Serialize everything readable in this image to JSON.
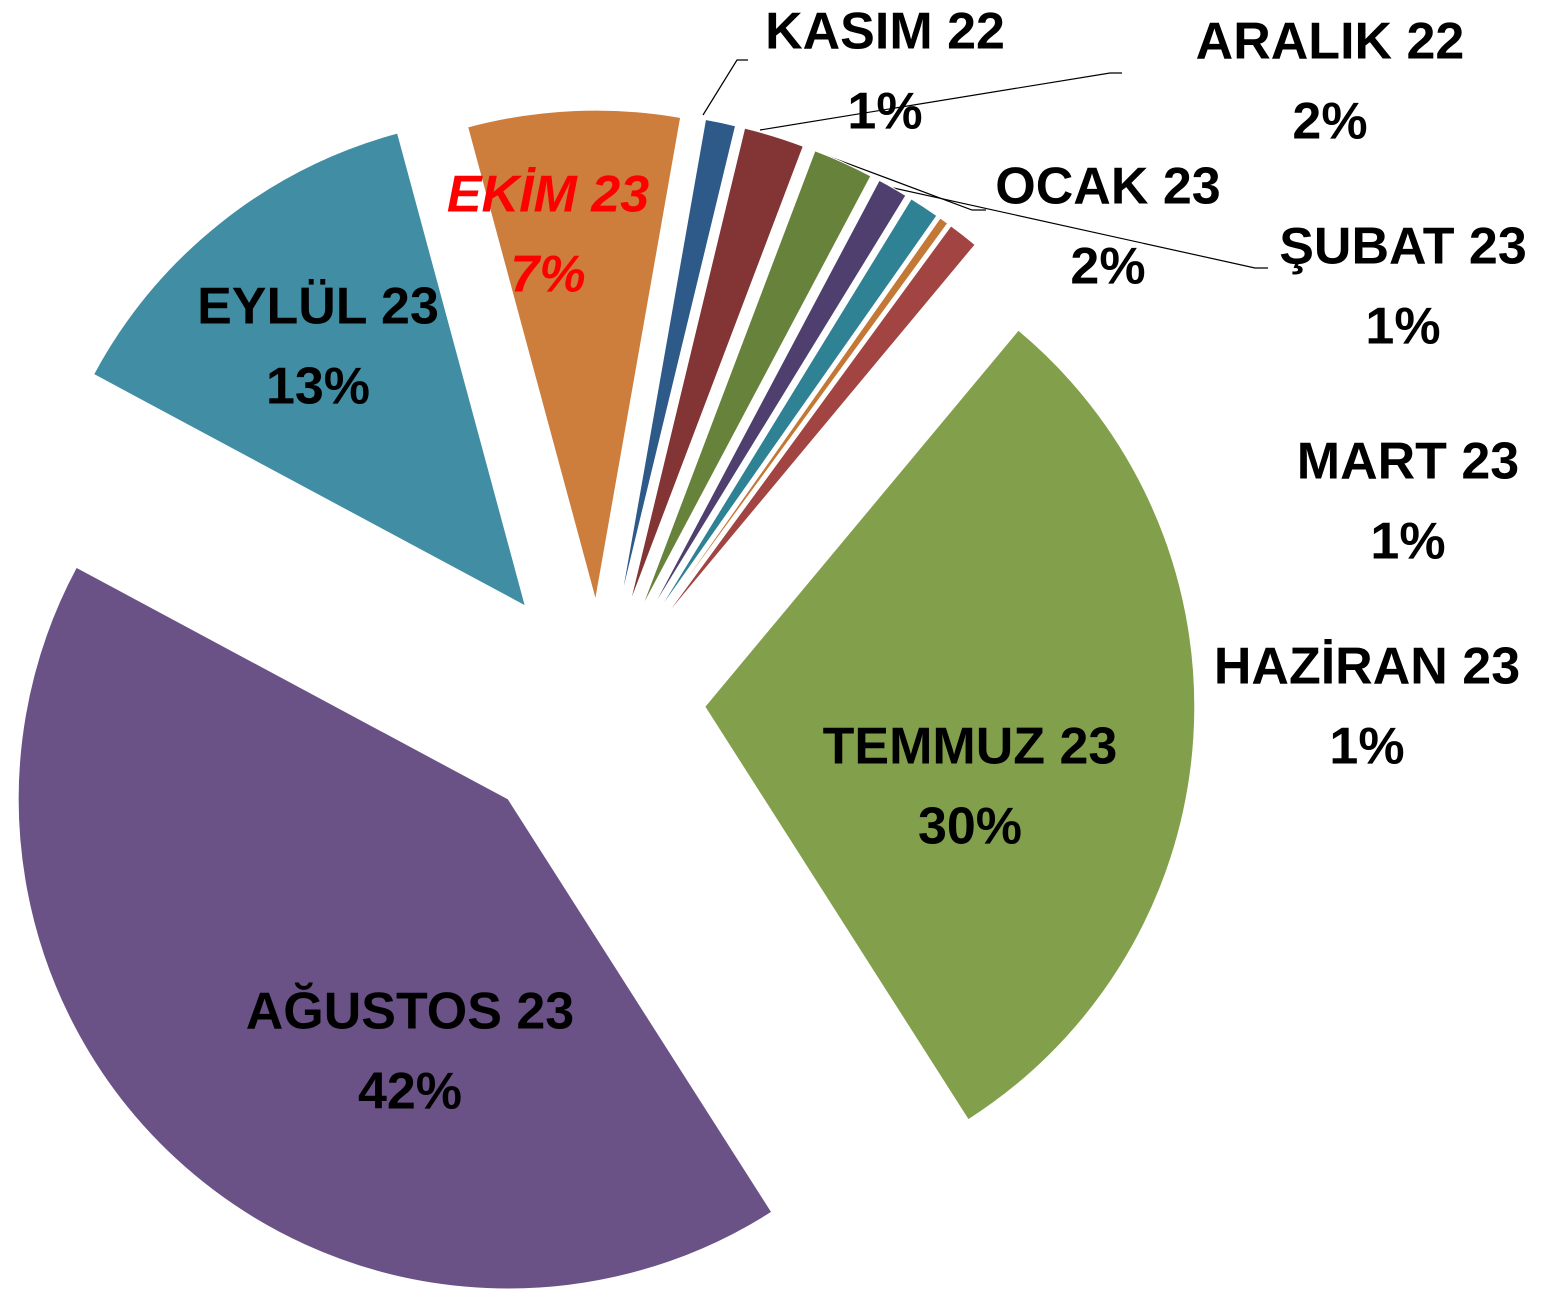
{
  "chart_data": {
    "type": "pie",
    "categories": [
      "KASIM 22",
      "ARALIK 22",
      "OCAK 23",
      "ŞUBAT 23",
      "MART 23",
      null,
      "HAZİRAN 23",
      "TEMMUZ 23",
      "AĞUSTOS 23",
      "EYLÜL 23",
      "EKİM 23"
    ],
    "values": [
      1,
      2,
      2,
      1,
      1,
      0.3,
      1,
      30,
      42,
      13,
      7
    ],
    "value_labels": [
      "1%",
      "2%",
      "2%",
      "1%",
      "1%",
      null,
      "1%",
      "30%",
      "42%",
      "13%",
      "7%"
    ],
    "colors": [
      "#2e5a8a",
      "#833434",
      "#67823a",
      "#4e3f6e",
      "#2f8194",
      "#c47836",
      "#a24442",
      "#82a04c",
      "#6a5287",
      "#418ea4",
      "#cd7d3c"
    ],
    "label_colors": [
      "#000000",
      "#000000",
      "#000000",
      "#000000",
      "#000000",
      null,
      "#000000",
      "#000000",
      "#000000",
      "#000000",
      "#ff0000"
    ]
  }
}
